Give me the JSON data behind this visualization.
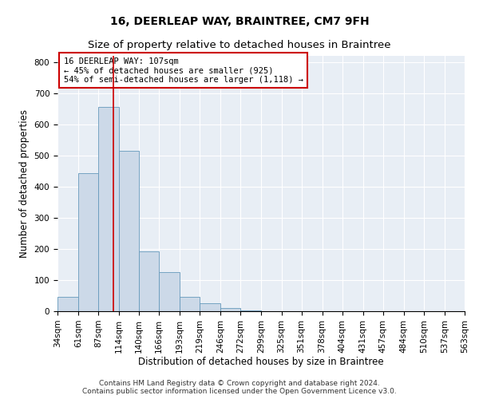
{
  "title": "16, DEERLEAP WAY, BRAINTREE, CM7 9FH",
  "subtitle": "Size of property relative to detached houses in Braintree",
  "xlabel": "Distribution of detached houses by size in Braintree",
  "ylabel": "Number of detached properties",
  "footer_line1": "Contains HM Land Registry data © Crown copyright and database right 2024.",
  "footer_line2": "Contains public sector information licensed under the Open Government Licence v3.0.",
  "property_size": 107,
  "property_line_label": "16 DEERLEAP WAY: 107sqm",
  "annotation_line1": "← 45% of detached houses are smaller (925)",
  "annotation_line2": "54% of semi-detached houses are larger (1,118) →",
  "bar_edges": [
    34,
    61,
    87,
    114,
    140,
    166,
    193,
    219,
    246,
    272,
    299,
    325,
    351,
    378,
    404,
    431,
    457,
    484,
    510,
    537,
    563
  ],
  "bar_heights": [
    47,
    443,
    655,
    515,
    193,
    125,
    47,
    25,
    10,
    3,
    0,
    0,
    0,
    0,
    0,
    0,
    0,
    0,
    0,
    0
  ],
  "bar_color": "#ccd9e8",
  "bar_edgecolor": "#6699bb",
  "vline_color": "#cc0000",
  "annotation_box_edgecolor": "#cc0000",
  "annotation_box_facecolor": "white",
  "background_color": "#e8eef5",
  "ylim": [
    0,
    820
  ],
  "yticks": [
    0,
    100,
    200,
    300,
    400,
    500,
    600,
    700,
    800
  ],
  "title_fontsize": 10,
  "subtitle_fontsize": 9.5,
  "axis_label_fontsize": 8.5,
  "tick_fontsize": 7.5,
  "annotation_fontsize": 7.5,
  "footer_fontsize": 6.5
}
